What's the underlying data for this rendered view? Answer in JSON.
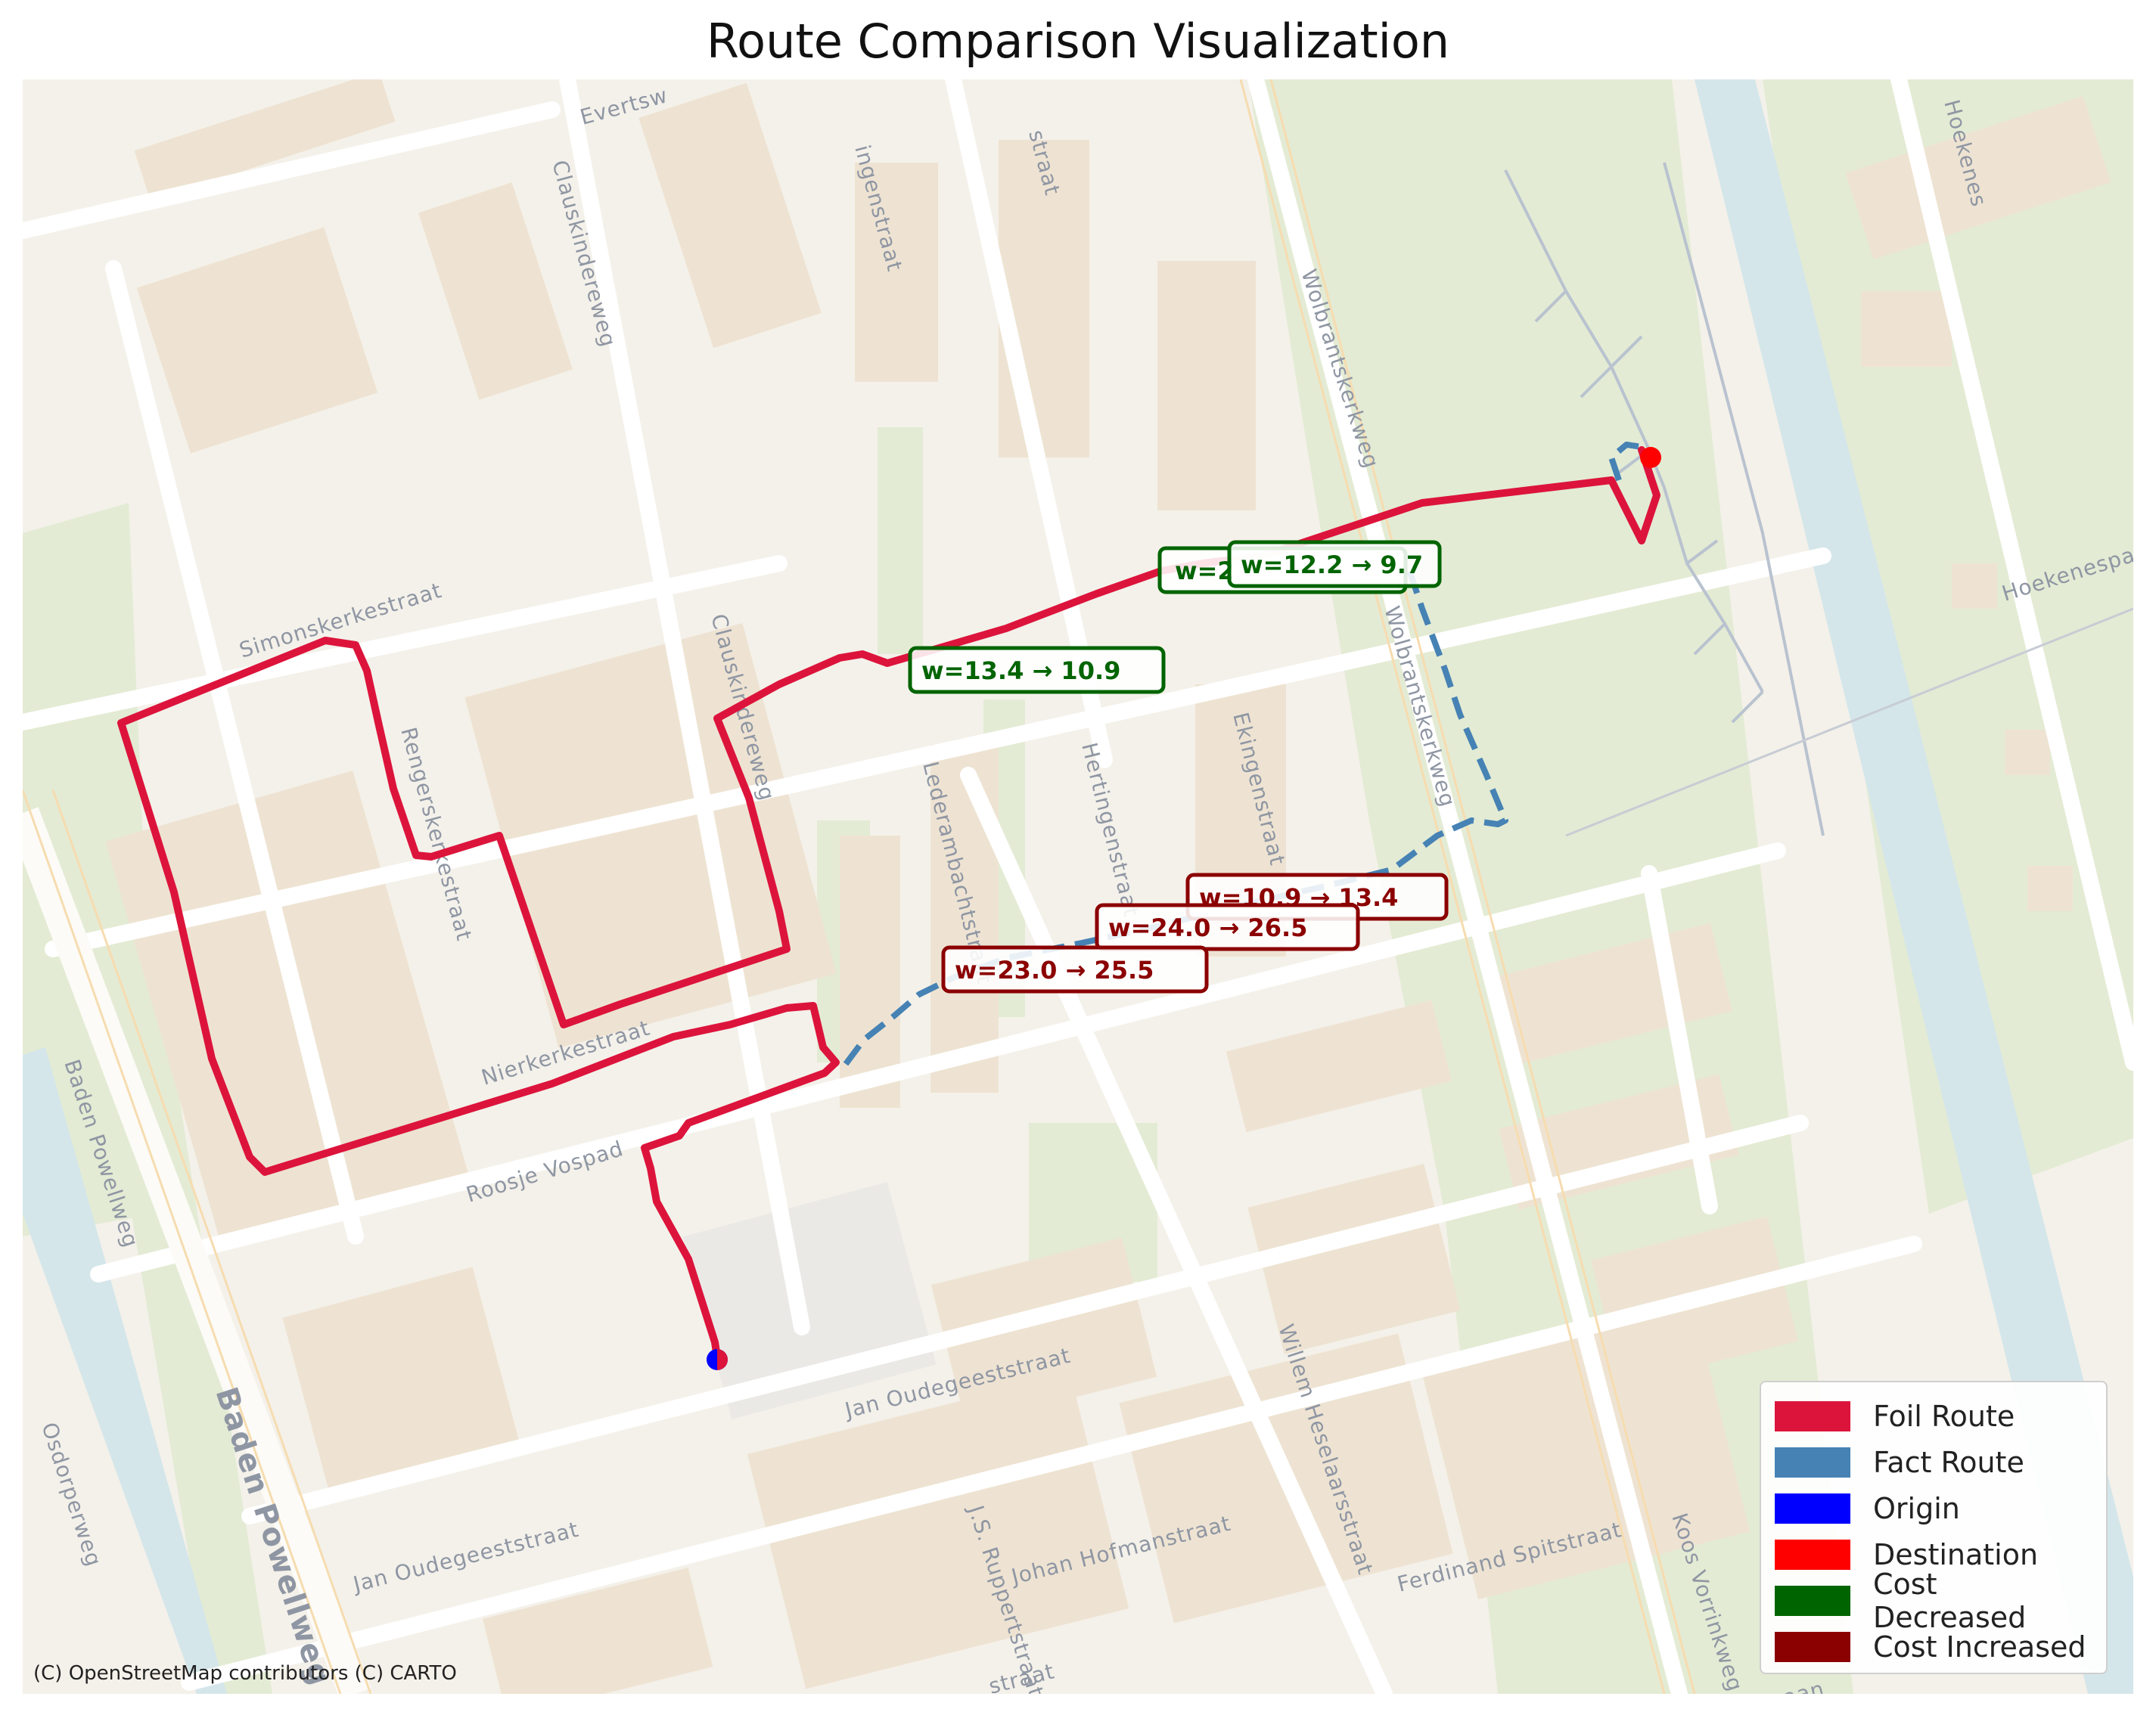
{
  "title": "Route Comparison Visualization",
  "attribution": "(C) OpenStreetMap contributors (C) CARTO",
  "streets": [
    "Evertsw",
    "Clauskindereweg",
    "ingenstraat",
    "straat",
    "Wolbrantskerkweg",
    "Hoekenes",
    "Hoekenespad",
    "Simonskerkestraat",
    "Rengerskerkestraat",
    "Clauskindereweg",
    "Lederambachtstraat",
    "Hertingenstraat",
    "Ekingenstraat",
    "Wolbrantskerkweg",
    "Nierkerkestraat",
    "Roosje Vospad",
    "Baden Powellweg",
    "Baden Powellweg",
    "Osdorperweg",
    "Jan Oudegeeststraat",
    "Jan Oudegeeststraat",
    "J.S. Ruppertstraat",
    "Johan Hofmanstraat",
    "Willem Heselaarsstraat",
    "Ferdinand Spitstraat",
    "Koos Vorrinkweg",
    "straat",
    "aan"
  ],
  "weight_changes": [
    {
      "text": "w=12.2 → 9.7",
      "kind": "decreased"
    },
    {
      "text": "w=13.4 → 10.9",
      "kind": "decreased"
    },
    {
      "text": "w=2",
      "kind": "decreased"
    },
    {
      "text": "w=10.9 → 13.4",
      "kind": "increased"
    },
    {
      "text": "w=24.0 → 26.5",
      "kind": "increased"
    },
    {
      "text": "w=23.0 → 25.5",
      "kind": "increased"
    }
  ],
  "legend": [
    {
      "label": "Foil Route",
      "color": "#dc143c"
    },
    {
      "label": "Fact Route",
      "color": "#4682b4"
    },
    {
      "label": "Origin",
      "color": "#0000ff"
    },
    {
      "label": "Destination",
      "color": "#ff0000"
    },
    {
      "label": "Cost Decreased",
      "color": "#006400"
    },
    {
      "label": "Cost Increased",
      "color": "#8b0000"
    }
  ],
  "colors": {
    "foil_route": "#dc143c",
    "fact_route": "#4682b4",
    "origin": "#0000ff",
    "destination": "#ff0000",
    "cost_decreased": "#006400",
    "cost_increased": "#8b0000",
    "land": "#f4f1ea",
    "park": "#e3ebd4",
    "water": "#d4e6ea",
    "building": "#eee3d2"
  }
}
